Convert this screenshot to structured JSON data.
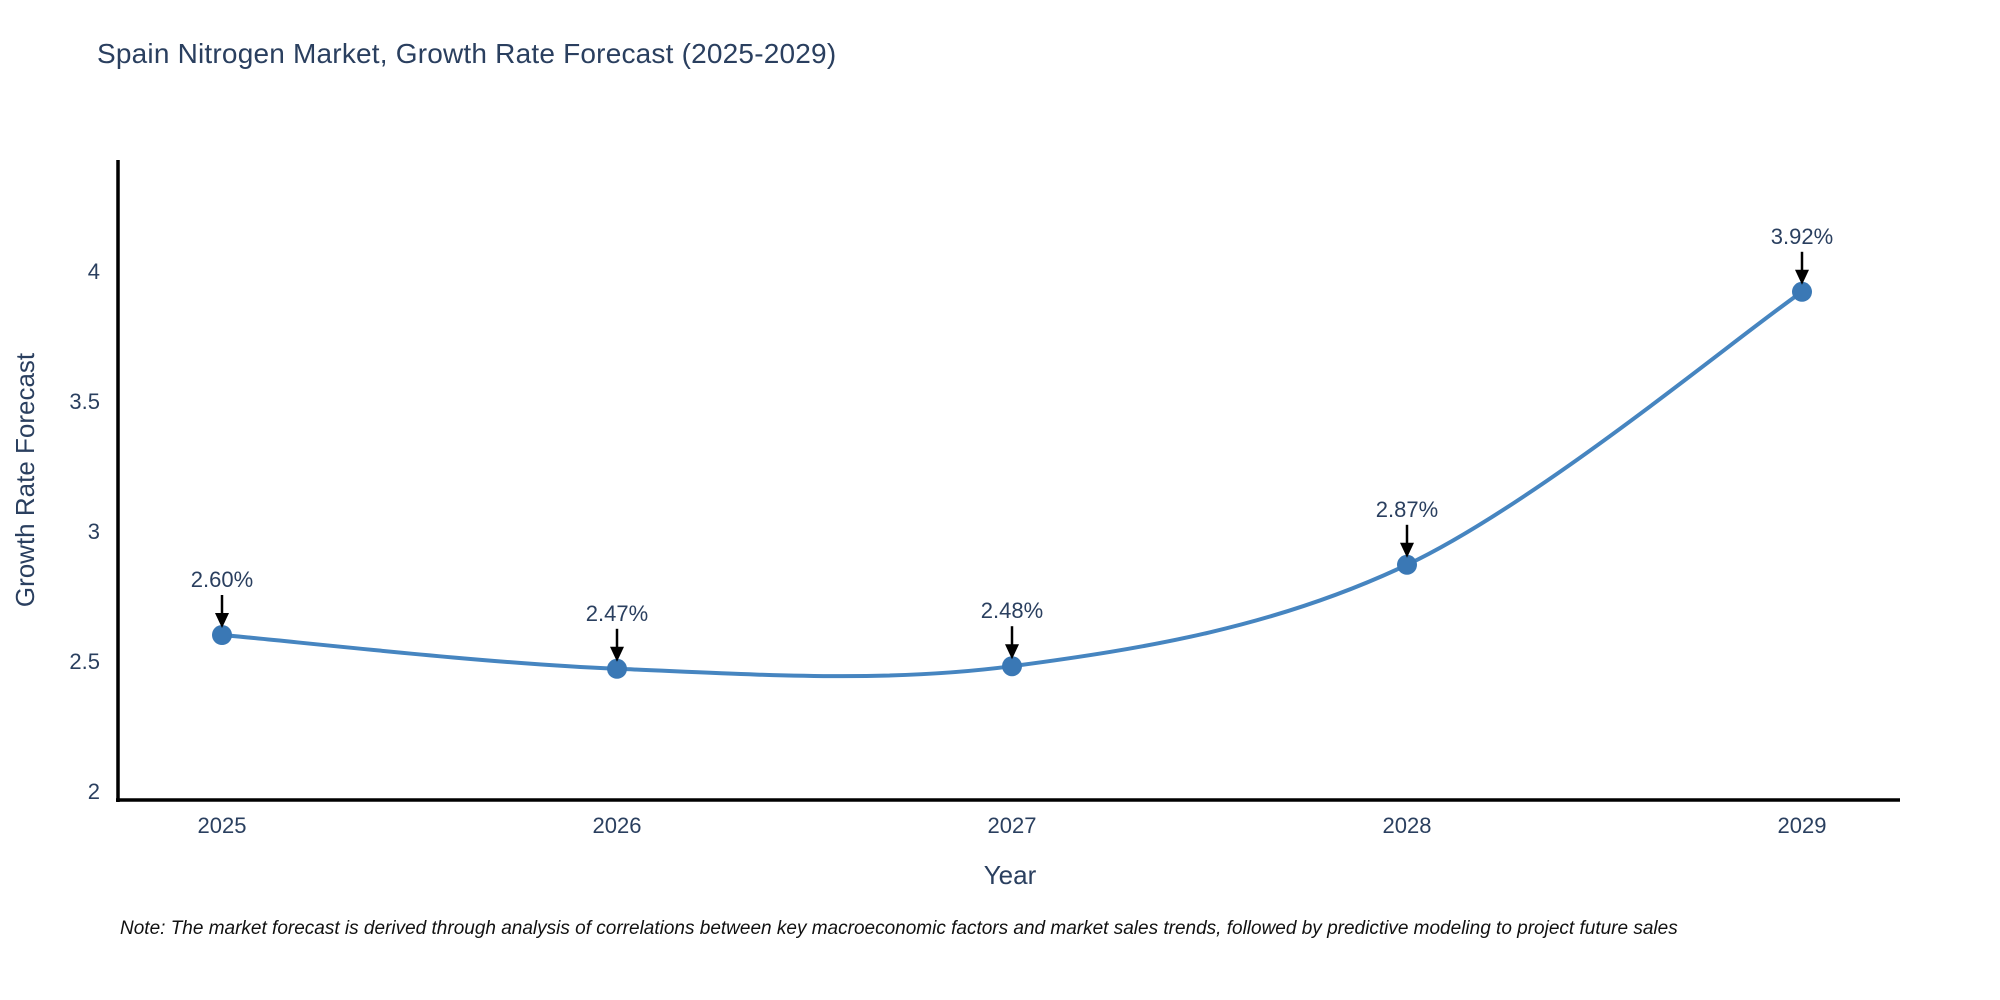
{
  "page": {
    "background": "#ffffff"
  },
  "chart_data": {
    "type": "line",
    "title": "Spain Nitrogen Market, Growth Rate Forecast (2025-2029)",
    "xlabel": "Year",
    "ylabel": "Growth Rate Forecast",
    "categories": [
      "2025",
      "2026",
      "2027",
      "2028",
      "2029"
    ],
    "values": [
      2.6,
      2.47,
      2.48,
      2.87,
      3.92
    ],
    "point_labels": [
      "2.60%",
      "2.47%",
      "2.48%",
      "2.87%",
      "3.92%"
    ],
    "y_ticks": [
      2,
      2.5,
      3,
      3.5,
      4
    ],
    "y_tick_labels": [
      "2",
      "2.5",
      "3",
      "3.5",
      "4"
    ],
    "ylim": [
      1.96,
      4.43
    ],
    "grid": false,
    "legend": "none",
    "line_shape": "spline",
    "annotations_have_arrows": true,
    "colors": {
      "line": "#4685c0",
      "marker": "#3a78b5",
      "axis": "#000000",
      "text": "#2a3f5f",
      "annotation_arrow": "#000000"
    }
  },
  "note": {
    "text": "Note: The market forecast is derived through analysis of correlations between key macroeconomic factors and market sales trends, followed by predictive modeling to project future sales"
  }
}
